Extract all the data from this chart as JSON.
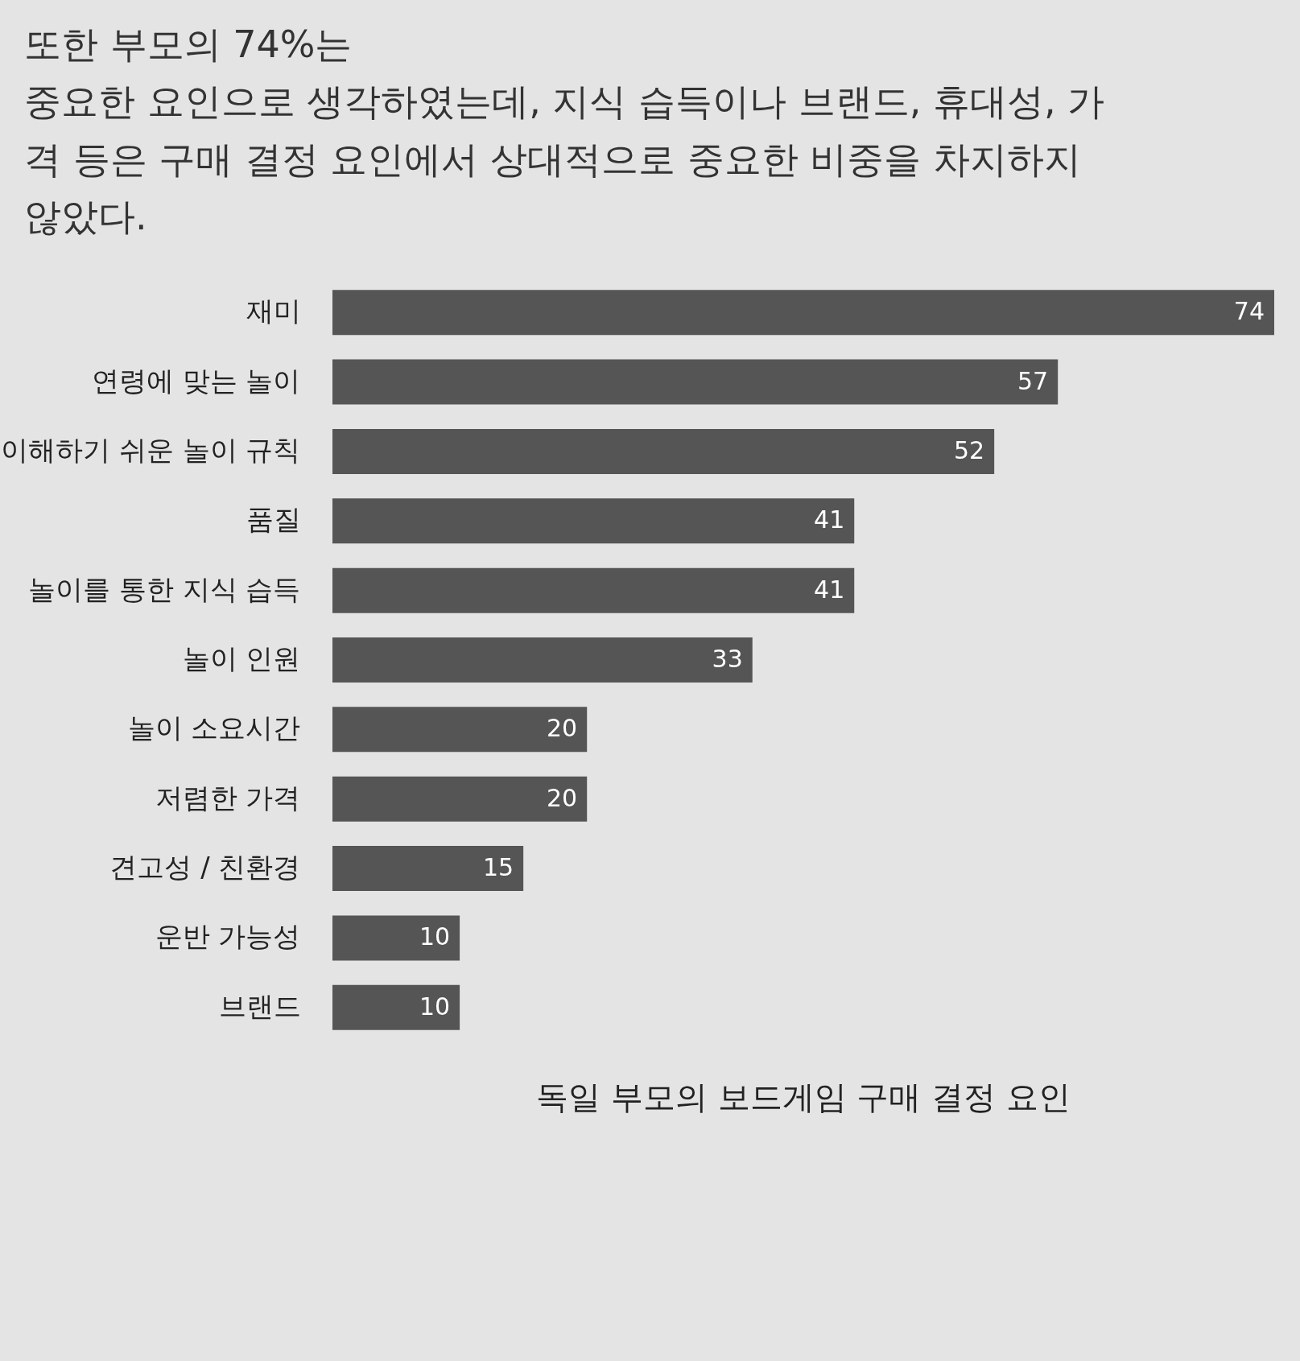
{
  "chart_data": {
    "type": "bar",
    "orientation": "horizontal",
    "title": "독일 부모의 보드게임 구매 결정 요인",
    "categories": [
      "재미",
      "연령에 맞는 놀이",
      "이해하기 쉬운 놀이 규칙",
      "품질",
      "놀이를 통한 지식 습득",
      "놀이 인원",
      "놀이 소요시간",
      "저렴한 가격",
      "견고성 / 친환경",
      "운반 가능성",
      "브랜드"
    ],
    "values": [
      74,
      57,
      52,
      41,
      41,
      33,
      20,
      20,
      15,
      10,
      10
    ],
    "color": "#555555",
    "data_labels": true,
    "annotations": [
      "또한 부모의 74%는",
      "중요한 요인으로 생각하였는데, 지식 습득이나 브랜드, 휴대성, 가",
      "격 등은 구매 결정 요인에서 상대적으로 중요한 비중을 차지하지",
      "않았다."
    ]
  }
}
